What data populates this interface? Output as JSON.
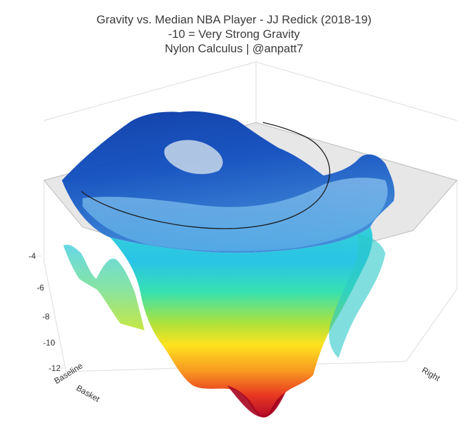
{
  "chart_data": {
    "type": "surface",
    "title": "Gravity vs. Median NBA Player - JJ Redick (2018-19)",
    "subtitle": "-10 = Very Strong Gravity",
    "credit": "Nylon Calculus | @anpatt7",
    "z_ticks": [
      "-4",
      "-6",
      "-8",
      "-10",
      "-12"
    ],
    "z_range": [
      -12,
      -4
    ],
    "axis_labels": {
      "baseline_end": "Baseline",
      "basket_axis": "Basket",
      "right_axis": "Right"
    },
    "colorscale": [
      "#b40426",
      "#e8361c",
      "#f7941d",
      "#ffe11a",
      "#a6e22e",
      "#39e0b5",
      "#25c6e8",
      "#1f86d6",
      "#1146b0"
    ],
    "court_plane_color": "#cfcfcf"
  }
}
